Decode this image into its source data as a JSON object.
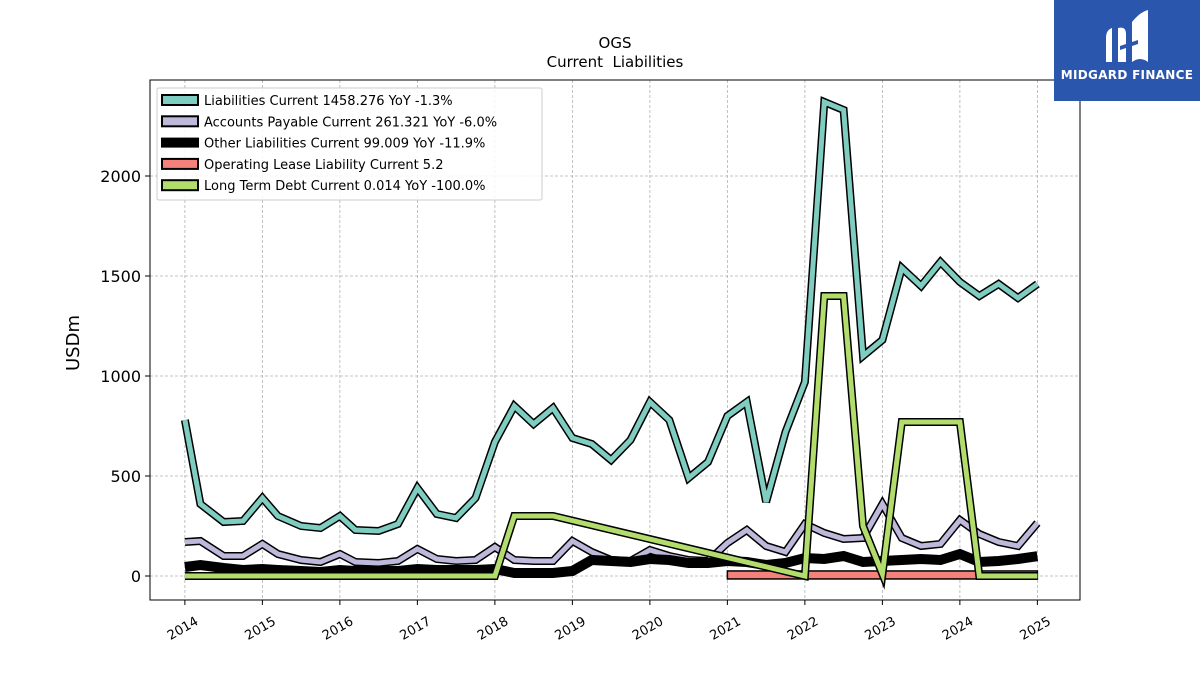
{
  "chart_data": {
    "type": "line",
    "title": "OGS",
    "subtitle": "Current  Liabilities",
    "ylabel": "USDm",
    "xlabel": "",
    "ylim": [
      -120,
      2480
    ],
    "xlim": [
      2013.55,
      2025.55
    ],
    "yticks": [
      0,
      500,
      1000,
      1500,
      2000
    ],
    "xticks": [
      "2014",
      "2015",
      "2016",
      "2017",
      "2018",
      "2019",
      "2020",
      "2021",
      "2022",
      "2023",
      "2024",
      "2025"
    ],
    "grid": true,
    "legend_position": "top-left",
    "series": [
      {
        "name": "Liabilities Current  1458.276 YoY -1.3%",
        "color": "#7fcdc1",
        "x": [
          2014.0,
          2014.2,
          2014.5,
          2014.75,
          2015.0,
          2015.2,
          2015.5,
          2015.75,
          2016.0,
          2016.2,
          2016.5,
          2016.75,
          2017.0,
          2017.25,
          2017.5,
          2017.75,
          2018.0,
          2018.25,
          2018.5,
          2018.75,
          2019.0,
          2019.25,
          2019.5,
          2019.75,
          2020.0,
          2020.25,
          2020.5,
          2020.75,
          2021.0,
          2021.25,
          2021.5,
          2021.75,
          2022.0,
          2022.25,
          2022.5,
          2022.75,
          2023.0,
          2023.25,
          2023.5,
          2023.75,
          2024.0,
          2024.25,
          2024.5,
          2024.75,
          2025.0
        ],
        "values": [
          780,
          360,
          270,
          275,
          390,
          300,
          250,
          240,
          300,
          230,
          225,
          260,
          440,
          310,
          290,
          390,
          670,
          850,
          760,
          840,
          690,
          660,
          580,
          680,
          870,
          780,
          490,
          570,
          800,
          870,
          370,
          720,
          970,
          2370,
          2330,
          1100,
          1180,
          1540,
          1450,
          1570,
          1470,
          1400,
          1460,
          1390,
          1460
        ]
      },
      {
        "name": "Accounts Payable Current  261.321 YoY -6.0%",
        "color": "#beb9da",
        "x": [
          2014.0,
          2014.2,
          2014.5,
          2014.75,
          2015.0,
          2015.2,
          2015.5,
          2015.75,
          2016.0,
          2016.2,
          2016.5,
          2016.75,
          2017.0,
          2017.25,
          2017.5,
          2017.75,
          2018.0,
          2018.25,
          2018.5,
          2018.75,
          2019.0,
          2019.25,
          2019.5,
          2019.75,
          2020.0,
          2020.25,
          2020.5,
          2020.75,
          2021.0,
          2021.25,
          2021.5,
          2021.75,
          2022.0,
          2022.25,
          2022.5,
          2022.75,
          2023.0,
          2023.25,
          2023.5,
          2023.75,
          2024.0,
          2024.25,
          2024.5,
          2024.75,
          2025.0
        ],
        "values": [
          170,
          175,
          100,
          100,
          160,
          110,
          80,
          70,
          110,
          70,
          65,
          75,
          135,
          85,
          75,
          80,
          145,
          80,
          75,
          75,
          175,
          120,
          80,
          75,
          130,
          100,
          80,
          75,
          165,
          230,
          150,
          120,
          260,
          215,
          185,
          190,
          360,
          190,
          150,
          160,
          280,
          210,
          170,
          150,
          265
        ]
      },
      {
        "name": "Other Liabilities Current  99.009 YoY -11.9%",
        "color": "#000000",
        "x": [
          2014.0,
          2014.2,
          2014.5,
          2014.75,
          2015.0,
          2015.2,
          2015.5,
          2015.75,
          2016.0,
          2016.2,
          2016.5,
          2016.75,
          2017.0,
          2017.25,
          2017.5,
          2017.75,
          2018.0,
          2018.25,
          2018.5,
          2018.75,
          2019.0,
          2019.25,
          2019.5,
          2019.75,
          2020.0,
          2020.25,
          2020.5,
          2020.75,
          2021.0,
          2021.25,
          2021.5,
          2021.75,
          2022.0,
          2022.25,
          2022.5,
          2022.75,
          2023.0,
          2023.25,
          2023.5,
          2023.75,
          2024.0,
          2024.25,
          2024.5,
          2024.75,
          2025.0
        ],
        "values": [
          45,
          55,
          40,
          30,
          35,
          30,
          25,
          20,
          30,
          25,
          25,
          25,
          35,
          30,
          30,
          30,
          35,
          15,
          15,
          15,
          25,
          80,
          75,
          70,
          85,
          80,
          65,
          65,
          75,
          70,
          55,
          65,
          90,
          85,
          100,
          70,
          75,
          80,
          85,
          80,
          110,
          70,
          75,
          85,
          99
        ]
      },
      {
        "name": "Operating Lease Liability Current  5.2",
        "color": "#f4827a",
        "x": [
          2021.0,
          2025.0
        ],
        "values": [
          5.2,
          5.2
        ]
      },
      {
        "name": "Long Term Debt Current  0.014 YoY -100.0%",
        "color": "#b2dc6c",
        "x": [
          2014.0,
          2018.0,
          2018.25,
          2018.75,
          2022.0,
          2022.25,
          2022.5,
          2022.75,
          2023.0,
          2023.25,
          2023.5,
          2023.75,
          2024.0,
          2024.25,
          2025.0
        ],
        "values": [
          0,
          0,
          300,
          300,
          0,
          1400,
          1400,
          250,
          10,
          770,
          770,
          770,
          770,
          0,
          0.014
        ]
      }
    ]
  },
  "logo": {
    "text": "MIDGARD FINANCE"
  }
}
